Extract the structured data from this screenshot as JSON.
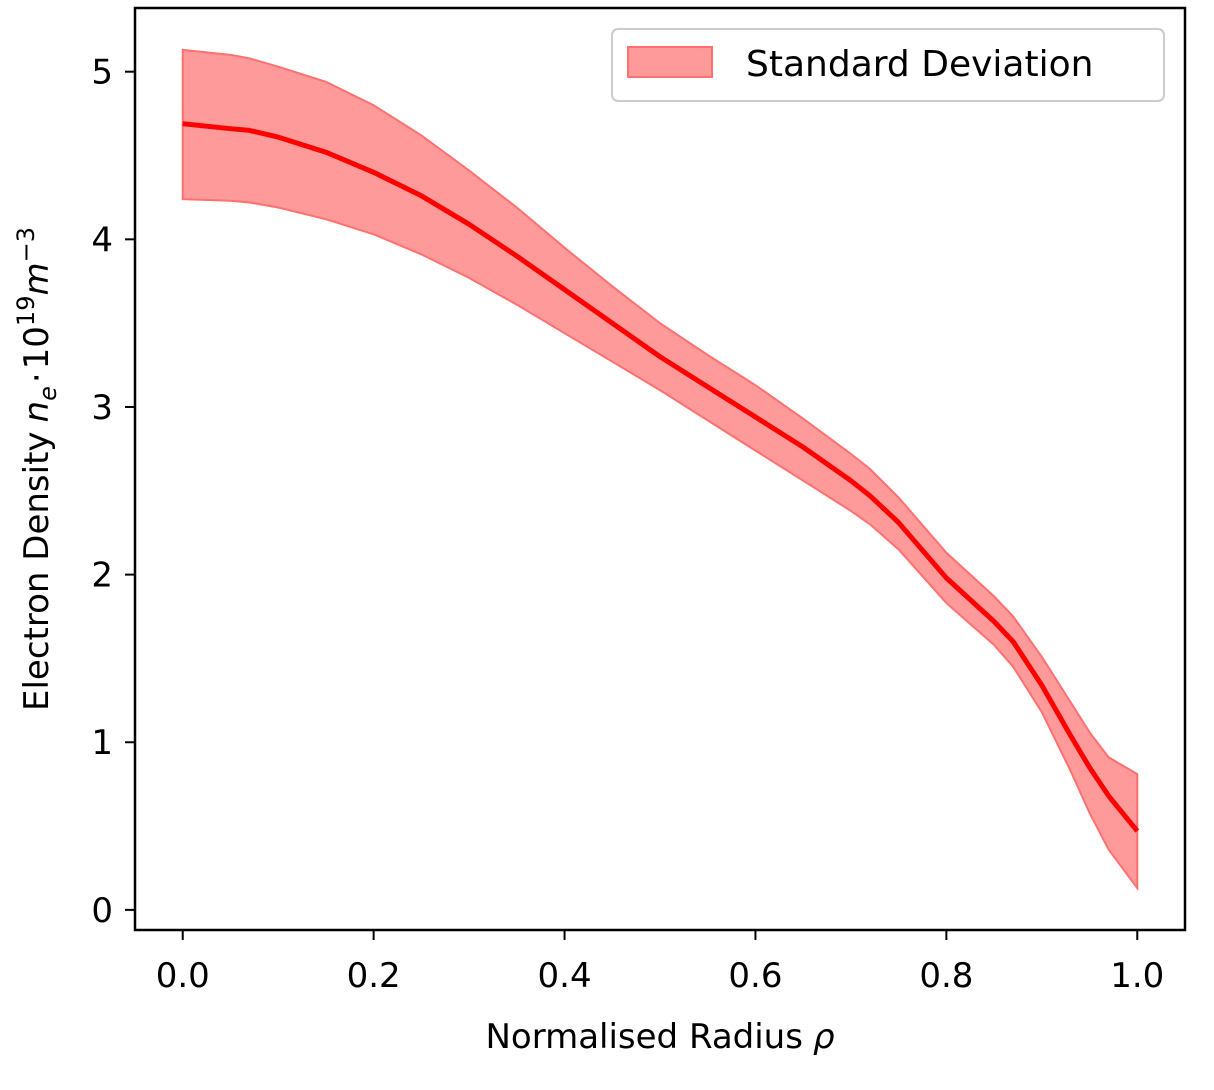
{
  "chart_data": {
    "type": "line",
    "title": "",
    "xlabel": "Normalised Radius",
    "xlabel_symbol": "ρ",
    "ylabel": "Electron Density",
    "ylabel_symbol": "n",
    "ylabel_symbol_sub": "e",
    "ylabel_multiplier": "10",
    "ylabel_multiplier_exp": "19",
    "ylabel_unit": "m",
    "ylabel_unit_exp": "−3",
    "ylabel_dot": "·",
    "xlim": [
      -0.05,
      1.05
    ],
    "ylim": [
      -0.12,
      5.38
    ],
    "xticks": [
      0.0,
      0.2,
      0.4,
      0.6,
      0.8,
      1.0
    ],
    "xtick_labels": [
      "0.0",
      "0.2",
      "0.4",
      "0.6",
      "0.8",
      "1.0"
    ],
    "yticks": [
      0,
      1,
      2,
      3,
      4,
      5
    ],
    "ytick_labels": [
      "0",
      "1",
      "2",
      "3",
      "4",
      "5"
    ],
    "grid": false,
    "legend_position": "top-right",
    "colors": {
      "line": "#ff0000",
      "band": "#ff9a9a",
      "band_edge": "#ff7070"
    },
    "series": [
      {
        "x": [
          0.0,
          0.05,
          0.07,
          0.1,
          0.15,
          0.2,
          0.25,
          0.3,
          0.35,
          0.4,
          0.45,
          0.5,
          0.55,
          0.6,
          0.65,
          0.7,
          0.72,
          0.75,
          0.8,
          0.85,
          0.87,
          0.9,
          0.93,
          0.95,
          0.97,
          1.0
        ],
        "mean": [
          4.69,
          4.66,
          4.65,
          4.61,
          4.52,
          4.4,
          4.26,
          4.09,
          3.9,
          3.7,
          3.5,
          3.3,
          3.12,
          2.94,
          2.76,
          2.56,
          2.47,
          2.31,
          1.98,
          1.72,
          1.6,
          1.34,
          1.04,
          0.85,
          0.68,
          0.47
        ],
        "upper": [
          5.13,
          5.1,
          5.08,
          5.03,
          4.94,
          4.8,
          4.62,
          4.41,
          4.19,
          3.95,
          3.72,
          3.5,
          3.31,
          3.13,
          2.93,
          2.72,
          2.63,
          2.46,
          2.13,
          1.87,
          1.75,
          1.51,
          1.24,
          1.06,
          0.91,
          0.81
        ],
        "lower": [
          4.24,
          4.23,
          4.22,
          4.19,
          4.12,
          4.03,
          3.91,
          3.77,
          3.61,
          3.44,
          3.27,
          3.1,
          2.92,
          2.74,
          2.56,
          2.38,
          2.3,
          2.15,
          1.83,
          1.58,
          1.45,
          1.18,
          0.83,
          0.58,
          0.36,
          0.13
        ]
      }
    ],
    "legend": {
      "entries": [
        "Standard Deviation"
      ]
    }
  }
}
